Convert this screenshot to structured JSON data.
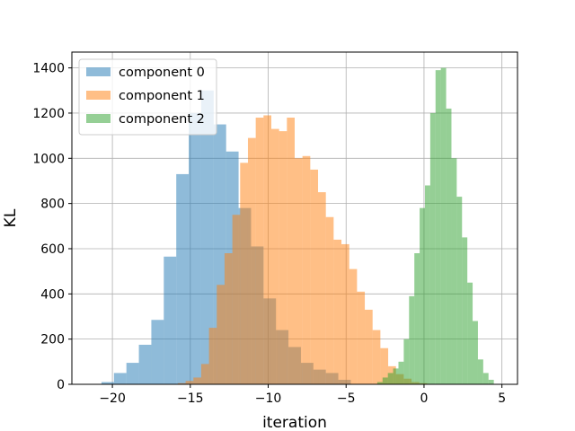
{
  "chart_data": {
    "type": "histogram",
    "xlabel": "iteration",
    "ylabel": "KL",
    "xlim": [
      -22.6,
      6.0
    ],
    "ylim": [
      0,
      1470
    ],
    "xticks": [
      -20,
      -15,
      -10,
      -5,
      0,
      5
    ],
    "xtick_labels": [
      "−20",
      "−15",
      "−10",
      "−5",
      "0",
      "5"
    ],
    "yticks": [
      0,
      200,
      400,
      600,
      800,
      1000,
      1200,
      1400
    ],
    "ytick_labels": [
      "0",
      "200",
      "400",
      "600",
      "800",
      "1000",
      "1200",
      "1400"
    ],
    "grid": true,
    "legend_position": "top-left",
    "bar_opacity": 0.5,
    "series": [
      {
        "name": "component 0",
        "color": "#1f77b4",
        "bin_start": -20.7,
        "bin_width": 0.8,
        "counts": [
          10,
          50,
          95,
          175,
          285,
          565,
          930,
          1200,
          1300,
          1150,
          1030,
          780,
          610,
          380,
          240,
          165,
          95,
          65,
          50,
          20
        ]
      },
      {
        "name": "component 1",
        "color": "#ff7f0e",
        "bin_start": -15.8,
        "bin_width": 0.5,
        "counts": [
          5,
          15,
          30,
          90,
          250,
          440,
          580,
          750,
          980,
          1090,
          1180,
          1190,
          1130,
          1120,
          1180,
          1000,
          1010,
          950,
          850,
          740,
          640,
          620,
          510,
          410,
          330,
          240,
          160,
          80,
          45,
          25,
          10,
          5
        ]
      },
      {
        "name": "component 2",
        "color": "#2ca02c",
        "bin_start": -3.0,
        "bin_width": 0.34,
        "counts": [
          10,
          30,
          50,
          70,
          100,
          200,
          390,
          580,
          780,
          880,
          1200,
          1390,
          1400,
          1220,
          1000,
          830,
          650,
          450,
          280,
          110,
          50,
          20
        ]
      }
    ]
  }
}
